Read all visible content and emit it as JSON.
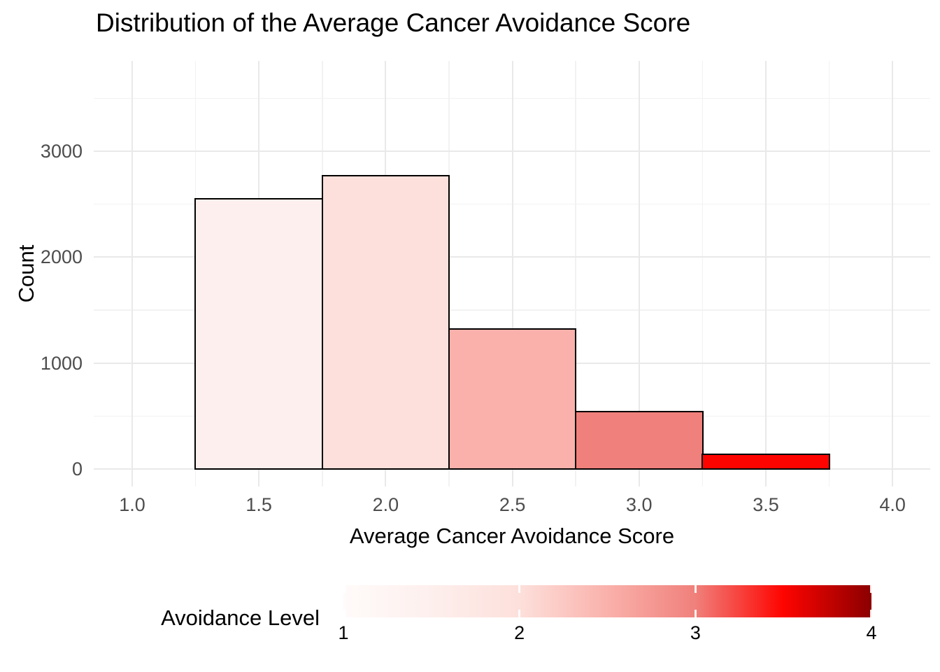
{
  "chart_data": {
    "type": "bar",
    "subtype": "histogram",
    "title": "Distribution of the Average Cancer Avoidance Score",
    "xlabel": "Average Cancer Avoidance Score",
    "ylabel": "Count",
    "grid": "on",
    "bin_width": 0.5,
    "bins": [
      {
        "from": 1.25,
        "to": 1.75,
        "midpoint": 1.5,
        "count": 2550,
        "fill": "#FDEFED"
      },
      {
        "from": 1.75,
        "to": 2.25,
        "midpoint": 2.0,
        "count": 2770,
        "fill": "#FDE0DB"
      },
      {
        "from": 2.25,
        "to": 2.75,
        "midpoint": 2.5,
        "count": 1320,
        "fill": "#FAB1AB"
      },
      {
        "from": 2.75,
        "to": 3.25,
        "midpoint": 3.0,
        "count": 540,
        "fill": "#F0807B"
      },
      {
        "from": 3.25,
        "to": 3.75,
        "midpoint": 3.5,
        "count": 135,
        "fill": "#FE0400"
      }
    ],
    "x_axis": {
      "ticks": [
        {
          "value": 1.0,
          "label": "1.0"
        },
        {
          "value": 1.5,
          "label": "1.5"
        },
        {
          "value": 2.0,
          "label": "2.0"
        },
        {
          "value": 2.5,
          "label": "2.5"
        },
        {
          "value": 3.0,
          "label": "3.0"
        },
        {
          "value": 3.5,
          "label": "3.5"
        },
        {
          "value": 4.0,
          "label": "4.0"
        }
      ],
      "minor": [
        1.25,
        1.75,
        2.25,
        2.75,
        3.25,
        3.75
      ]
    },
    "y_axis": {
      "ticks": [
        {
          "value": 0,
          "label": "0"
        },
        {
          "value": 1000,
          "label": "1000"
        },
        {
          "value": 2000,
          "label": "2000"
        },
        {
          "value": 3000,
          "label": "3000"
        }
      ],
      "minor": [
        500,
        1500,
        2500,
        3500
      ]
    },
    "style": {
      "background": "#FFFFFF",
      "bar_stroke": "#000000",
      "grid_major": "#E9E9E9",
      "grid_minor": "#F2F2F2",
      "tick_text": "#4D4D4D",
      "title_text": "#000000"
    },
    "legend": {
      "title": "Avoidance Level",
      "min": 1,
      "max": 4,
      "ticks": [
        {
          "value": 1,
          "label": "1"
        },
        {
          "value": 2,
          "label": "2"
        },
        {
          "value": 3,
          "label": "3"
        },
        {
          "value": 4,
          "label": "4"
        }
      ],
      "gradient_stops": [
        {
          "pos": 0.0,
          "color": "#FFFBFA"
        },
        {
          "pos": 0.1667,
          "color": "#FDEFED"
        },
        {
          "pos": 0.3333,
          "color": "#FDE0DB"
        },
        {
          "pos": 0.5,
          "color": "#FAB1AB"
        },
        {
          "pos": 0.6667,
          "color": "#F0807B"
        },
        {
          "pos": 0.8333,
          "color": "#FE0400"
        },
        {
          "pos": 1.0,
          "color": "#8B0000"
        }
      ]
    }
  }
}
